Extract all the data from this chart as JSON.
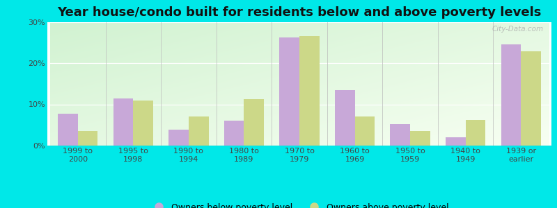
{
  "title": "Year house/condo built for residents below and above poverty levels",
  "categories": [
    "1999 to\n2000",
    "1995 to\n1998",
    "1990 to\n1994",
    "1980 to\n1989",
    "1970 to\n1979",
    "1960 to\n1969",
    "1950 to\n1959",
    "1940 to\n1949",
    "1939 or\nearlier"
  ],
  "below_poverty": [
    7.8,
    11.5,
    3.8,
    6.0,
    26.2,
    13.5,
    5.2,
    2.0,
    24.5
  ],
  "above_poverty": [
    3.5,
    11.0,
    7.0,
    11.2,
    26.5,
    7.0,
    3.5,
    6.2,
    22.8
  ],
  "below_color": "#c8a8d8",
  "above_color": "#ccd888",
  "outer_bg": "#00e8e8",
  "ylim": [
    0,
    30
  ],
  "yticks": [
    0,
    10,
    20,
    30
  ],
  "ytick_labels": [
    "0%",
    "10%",
    "20%",
    "30%"
  ],
  "legend_below": "Owners below poverty level",
  "legend_above": "Owners above poverty level",
  "title_fontsize": 13,
  "tick_fontsize": 8,
  "legend_fontsize": 9,
  "bar_width": 0.36
}
